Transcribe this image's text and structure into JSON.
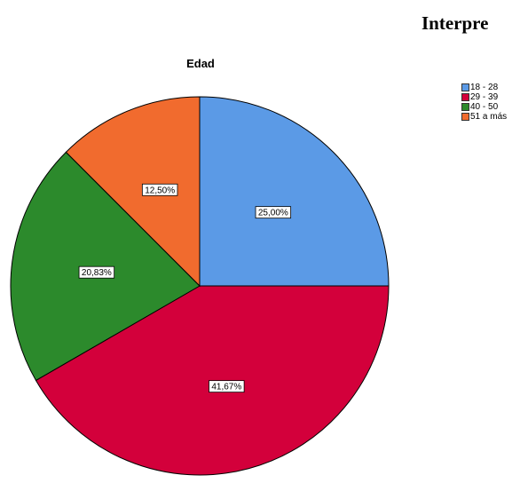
{
  "heading": "Interpre",
  "chart_data": {
    "type": "pie",
    "title": "Edad",
    "categories": [
      "18 - 28",
      "29 - 39",
      "40 - 50",
      "51 a más"
    ],
    "values": [
      25.0,
      41.67,
      20.83,
      12.5
    ],
    "labels": [
      "25,00%",
      "41,67%",
      "20,83%",
      "12,50%"
    ],
    "colors": [
      "#5b9ae6",
      "#d3003b",
      "#2c8a2c",
      "#f16b2e"
    ],
    "legend_position": "top-right",
    "start_angle": "12 o'clock, clockwise"
  }
}
